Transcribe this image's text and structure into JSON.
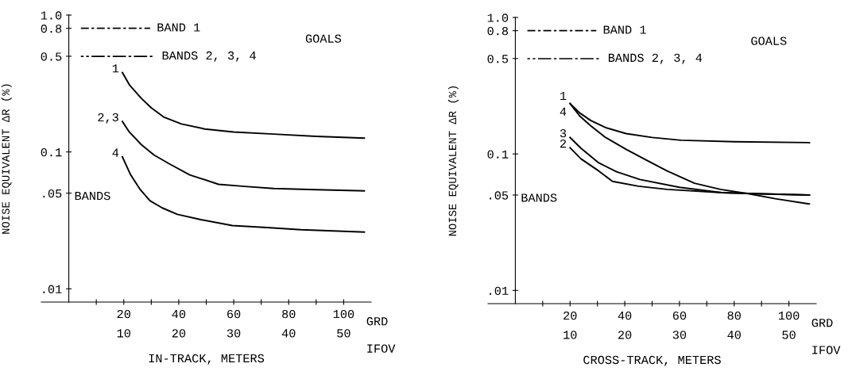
{
  "chart_data": [
    {
      "type": "line",
      "xlabel": "IN-TRACK, METERS",
      "ylabel": "NOISE EQUIVALENT ΔR (%)",
      "log": "y",
      "xlim": [
        -10,
        110
      ],
      "ylim": [
        0.008,
        1.0
      ],
      "xticks": [
        {
          "value": 10,
          "label": null
        },
        20,
        {
          "value": 30,
          "label": null
        },
        40,
        {
          "value": 50,
          "label": null
        },
        60,
        {
          "value": 70,
          "label": null
        },
        80,
        {
          "value": 90,
          "label": null
        },
        100
      ],
      "x2lim": [
        -5,
        55
      ],
      "x2ticks": [
        10,
        20,
        30,
        40,
        50
      ],
      "yticks": [
        {
          "value": 0.01,
          "label": ".01"
        },
        {
          "value": 0.05,
          "label": ".05"
        },
        {
          "value": 0.1,
          "label": "0.1"
        },
        {
          "value": 0.5,
          "label": "0.5"
        },
        {
          "value": 0.8,
          "label": "0.8"
        },
        {
          "value": 1.0,
          "label": "1.0"
        }
      ],
      "annotations": [
        "BAND 1",
        "BANDS 2, 3, 4",
        "GOALS",
        "BANDS",
        "GRD",
        "IFOV"
      ],
      "grid": false,
      "legend": false,
      "marker": "none",
      "line_style": "solid",
      "series": [
        {
          "name": "1",
          "color": "#000000",
          "x": [
            19.5,
            22,
            26.4,
            30,
            34.5,
            41,
            49.5,
            60,
            74.5,
            90,
            107.5
          ],
          "values": [
            0.38,
            0.31,
            0.246,
            0.21,
            0.18,
            0.16,
            0.147,
            0.14,
            0.135,
            0.13,
            0.126
          ]
        },
        {
          "name": "2,3",
          "color": "#000000",
          "x": [
            19.5,
            22,
            26.4,
            31,
            36.5,
            44,
            54.5,
            64,
            74.5,
            90,
            107.5
          ],
          "values": [
            0.167,
            0.14,
            0.113,
            0.095,
            0.082,
            0.068,
            0.058,
            0.056,
            0.054,
            0.053,
            0.052
          ]
        },
        {
          "name": "4",
          "color": "#000000",
          "x": [
            19.5,
            22.5,
            26,
            29.5,
            34,
            39.5,
            48,
            59.5,
            72,
            84.5,
            107.5
          ],
          "values": [
            0.092,
            0.068,
            0.053,
            0.044,
            0.039,
            0.035,
            0.032,
            0.029,
            0.028,
            0.027,
            0.026
          ]
        }
      ]
    },
    {
      "type": "line",
      "xlabel": "CROSS-TRACK, METERS",
      "ylabel": "NOISE EQUIVALENT ΔR (%)",
      "log": "y",
      "xlim": [
        -10,
        110
      ],
      "ylim": [
        0.008,
        1.0
      ],
      "xticks": [
        {
          "value": 10,
          "label": null
        },
        20,
        {
          "value": 30,
          "label": null
        },
        40,
        {
          "value": 50,
          "label": null
        },
        60,
        {
          "value": 70,
          "label": null
        },
        80,
        {
          "value": 90,
          "label": null
        },
        100
      ],
      "x2lim": [
        -5,
        55
      ],
      "x2ticks": [
        10,
        20,
        30,
        40,
        50
      ],
      "yticks": [
        {
          "value": 0.01,
          "label": ".01"
        },
        {
          "value": 0.05,
          "label": ".05"
        },
        {
          "value": 0.1,
          "label": "0.1"
        },
        {
          "value": 0.5,
          "label": "0.5"
        },
        {
          "value": 0.8,
          "label": "0.8"
        },
        {
          "value": 1.0,
          "label": "1.0"
        }
      ],
      "annotations": [
        "BAND 1",
        "BANDS 2, 3, 4",
        "GOALS",
        "BANDS",
        "GRD",
        "IFOV"
      ],
      "grid": false,
      "legend": false,
      "marker": "none",
      "line_style": "solid",
      "series": [
        {
          "name": "1",
          "color": "#000000",
          "x": [
            20,
            23.5,
            27.5,
            33,
            40.5,
            50,
            60.5,
            80,
            107.5
          ],
          "values": [
            0.234,
            0.2,
            0.176,
            0.156,
            0.141,
            0.132,
            0.126,
            0.123,
            0.121
          ]
        },
        {
          "name": "4",
          "color": "#000000",
          "x": [
            20,
            23.5,
            27.5,
            33,
            40.5,
            48,
            55.5,
            65.5,
            75,
            85.5,
            95,
            107.5
          ],
          "values": [
            0.234,
            0.19,
            0.161,
            0.132,
            0.108,
            0.09,
            0.075,
            0.061,
            0.055,
            0.051,
            0.047,
            0.043
          ]
        },
        {
          "name": "3",
          "color": "#000000",
          "x": [
            20,
            24,
            30.5,
            37,
            45.5,
            60,
            75.5,
            90,
            107.5
          ],
          "values": [
            0.132,
            0.11,
            0.086,
            0.074,
            0.065,
            0.057,
            0.052,
            0.051,
            0.05
          ]
        },
        {
          "name": "2",
          "color": "#000000",
          "x": [
            20,
            24,
            30.5,
            35.5,
            45,
            55.5,
            75.5,
            90,
            107.5
          ],
          "values": [
            0.111,
            0.092,
            0.075,
            0.063,
            0.058,
            0.055,
            0.052,
            0.051,
            0.05
          ]
        }
      ]
    }
  ]
}
